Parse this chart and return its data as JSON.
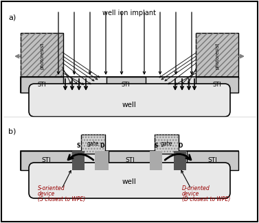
{
  "bg_color": "#ffffff",
  "panel_a_title": "well ion implant",
  "label_a": "a)",
  "label_b": "b)",
  "sti_label": "STI",
  "well_label": "well",
  "photoresist_label": "photoresist",
  "gate_label": "gate",
  "s_label": "S",
  "d_label": "D",
  "s_oriented_line1": "S-oriented",
  "s_oriented_line2": "device",
  "s_oriented_line3": "(S closest to WPE)",
  "d_oriented_line1": "D-oriented",
  "d_oriented_line2": "device",
  "d_oriented_line3": "(D closest to WPE)",
  "well_fill": "#e8e8e8",
  "sti_fill": "#c8c8c8",
  "photoresist_fill": "#c0c0c0",
  "gate_fill": "#d0d0d0",
  "substrate_fill": "#e0e0e0",
  "dark_sd": "#555555",
  "light_sd": "#aaaaaa"
}
